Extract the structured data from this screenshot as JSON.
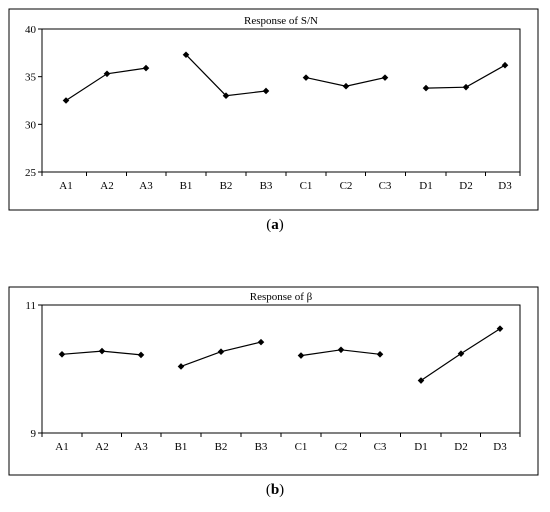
{
  "chart_data": [
    {
      "type": "line",
      "title": "Response of S/N",
      "caption_letter": "a",
      "categories": [
        "A1",
        "A2",
        "A3",
        "B1",
        "B2",
        "B3",
        "C1",
        "C2",
        "C3",
        "D1",
        "D2",
        "D3"
      ],
      "groups": [
        [
          "A1",
          "A2",
          "A3"
        ],
        [
          "B1",
          "B2",
          "B3"
        ],
        [
          "C1",
          "C2",
          "C3"
        ],
        [
          "D1",
          "D2",
          "D3"
        ]
      ],
      "values": [
        32.5,
        35.3,
        35.9,
        37.3,
        33.0,
        33.5,
        34.9,
        34.0,
        34.9,
        33.8,
        33.9,
        36.2
      ],
      "ylim": [
        25,
        40
      ],
      "yticks": [
        25,
        30,
        35,
        40
      ],
      "grid": false,
      "marker": "diamond"
    },
    {
      "type": "line",
      "title": "Response of β",
      "caption_letter": "b",
      "categories": [
        "A1",
        "A2",
        "A3",
        "B1",
        "B2",
        "B3",
        "C1",
        "C2",
        "C3",
        "D1",
        "D2",
        "D3"
      ],
      "groups": [
        [
          "A1",
          "A2",
          "A3"
        ],
        [
          "B1",
          "B2",
          "B3"
        ],
        [
          "C1",
          "C2",
          "C3"
        ],
        [
          "D1",
          "D2",
          "D3"
        ]
      ],
      "values": [
        10.23,
        10.28,
        10.22,
        10.04,
        10.27,
        10.42,
        10.21,
        10.3,
        10.23,
        9.82,
        10.24,
        10.63
      ],
      "ylim": [
        9,
        11
      ],
      "yticks": [
        9,
        11
      ],
      "grid": false,
      "marker": "diamond"
    }
  ]
}
